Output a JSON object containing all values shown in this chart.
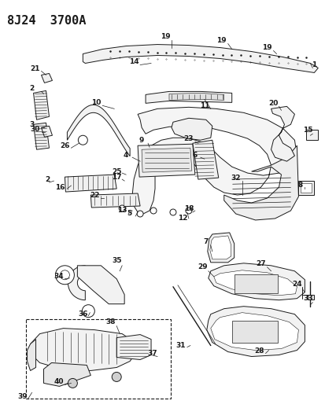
{
  "title": "8J24  3700A",
  "bg_color": "#ffffff",
  "line_color": "#1a1a1a",
  "title_fontsize": 11,
  "label_fontsize": 6.5,
  "fig_width": 4.14,
  "fig_height": 5.33,
  "dpi": 100
}
